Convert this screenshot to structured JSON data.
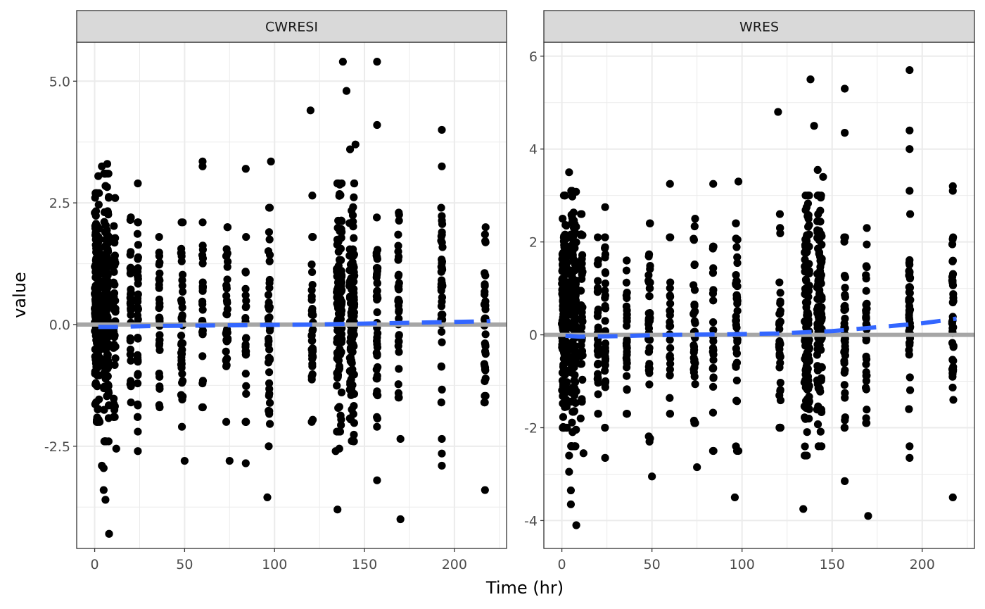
{
  "chart_data": {
    "type": "scatter",
    "xlabel": "Time (hr)",
    "ylabel": "value",
    "colors": {
      "points": "#000000",
      "smooth": "#3366ff",
      "reference": "#a6a6a6",
      "strip_fill": "#d9d9d9",
      "grid": "#ebebeb",
      "border": "#333333"
    },
    "grid": true,
    "x_ticks": [
      {
        "value": 0,
        "label": "0"
      },
      {
        "value": 50,
        "label": "50"
      },
      {
        "value": 100,
        "label": "100"
      },
      {
        "value": 150,
        "label": "150"
      },
      {
        "value": 200,
        "label": "200"
      }
    ],
    "panels": [
      {
        "strip": "CWRESI",
        "xlim": [
          -10,
          229
        ],
        "ylim": [
          -4.6,
          5.8
        ],
        "y_ticks": [
          {
            "value": -2.5,
            "label": "-2.5"
          },
          {
            "value": 0,
            "label": "0.0"
          },
          {
            "value": 2.5,
            "label": "2.5"
          },
          {
            "value": 5,
            "label": "5.0"
          }
        ],
        "reference_y": 0,
        "smooth": [
          [
            2,
            -0.05
          ],
          [
            10,
            -0.05
          ],
          [
            30,
            -0.03
          ],
          [
            60,
            -0.02
          ],
          [
            90,
            -0.01
          ],
          [
            120,
            0.0
          ],
          [
            150,
            0.02
          ],
          [
            180,
            0.04
          ],
          [
            210,
            0.06
          ],
          [
            220,
            0.07
          ]
        ],
        "outliers": [
          [
            4,
            -2.9
          ],
          [
            5,
            -2.95
          ],
          [
            5,
            -3.4
          ],
          [
            6,
            -3.6
          ],
          [
            8,
            -4.3
          ],
          [
            12,
            -2.55
          ],
          [
            24,
            -2.6
          ],
          [
            24,
            -2.2
          ],
          [
            50,
            -2.8
          ],
          [
            75,
            -2.8
          ],
          [
            84,
            -2.85
          ],
          [
            96,
            -3.55
          ],
          [
            120,
            4.4
          ],
          [
            135,
            -3.8
          ],
          [
            138,
            5.4
          ],
          [
            140,
            4.8
          ],
          [
            142,
            3.6
          ],
          [
            145,
            3.7
          ],
          [
            157,
            -3.2
          ],
          [
            157,
            5.4
          ],
          [
            157,
            4.1
          ],
          [
            170,
            -4.0
          ],
          [
            170,
            -2.35
          ],
          [
            193,
            4.0
          ],
          [
            193,
            3.25
          ],
          [
            193,
            -2.65
          ],
          [
            193,
            -2.9
          ],
          [
            193,
            -2.35
          ],
          [
            217,
            -3.4
          ],
          [
            60,
            3.35
          ],
          [
            60,
            3.25
          ],
          [
            84,
            3.2
          ],
          [
            98,
            3.35
          ],
          [
            134,
            -2.6
          ],
          [
            136,
            -2.55
          ],
          [
            4,
            3.25
          ],
          [
            7,
            3.3
          ],
          [
            2,
            3.05
          ],
          [
            121,
            2.65
          ],
          [
            24,
            2.9
          ]
        ],
        "columns": [
          {
            "x": 1.5,
            "lo": -2.0,
            "hi": 2.7,
            "n": 190,
            "jitter": 3.0
          },
          {
            "x": 6.5,
            "lo": -2.4,
            "hi": 3.1,
            "n": 150,
            "jitter": 3.0
          },
          {
            "x": 11,
            "lo": -1.9,
            "hi": 2.6,
            "n": 40,
            "jitter": 1.2
          },
          {
            "x": 20,
            "lo": -1.6,
            "hi": 2.2,
            "n": 30,
            "jitter": 0.4
          },
          {
            "x": 24,
            "lo": -1.9,
            "hi": 2.1,
            "n": 35,
            "jitter": 0.4
          },
          {
            "x": 36,
            "lo": -1.7,
            "hi": 1.8,
            "n": 30,
            "jitter": 0.4
          },
          {
            "x": 48.5,
            "lo": -2.1,
            "hi": 2.1,
            "n": 40,
            "jitter": 1.0
          },
          {
            "x": 60,
            "lo": -1.7,
            "hi": 2.1,
            "n": 25,
            "jitter": 0.4
          },
          {
            "x": 73.5,
            "lo": -2.0,
            "hi": 2.0,
            "n": 35,
            "jitter": 1.0
          },
          {
            "x": 84,
            "lo": -2.0,
            "hi": 1.8,
            "n": 25,
            "jitter": 0.4
          },
          {
            "x": 97,
            "lo": -2.5,
            "hi": 2.4,
            "n": 40,
            "jitter": 1.0
          },
          {
            "x": 121,
            "lo": -2.0,
            "hi": 1.8,
            "n": 35,
            "jitter": 0.8
          },
          {
            "x": 136,
            "lo": -2.2,
            "hi": 2.9,
            "n": 130,
            "jitter": 2.8
          },
          {
            "x": 143,
            "lo": -2.4,
            "hi": 2.9,
            "n": 130,
            "jitter": 2.8
          },
          {
            "x": 157,
            "lo": -2.1,
            "hi": 2.2,
            "n": 40,
            "jitter": 0.6
          },
          {
            "x": 169,
            "lo": -1.5,
            "hi": 2.3,
            "n": 35,
            "jitter": 0.6
          },
          {
            "x": 193,
            "lo": -1.6,
            "hi": 2.4,
            "n": 40,
            "jitter": 0.8
          },
          {
            "x": 217,
            "lo": -1.6,
            "hi": 2.0,
            "n": 35,
            "jitter": 0.8
          }
        ]
      },
      {
        "strip": "WRES",
        "xlim": [
          -10,
          229
        ],
        "ylim": [
          -4.6,
          6.3
        ],
        "y_ticks": [
          {
            "value": -4,
            "label": "-4"
          },
          {
            "value": -2,
            "label": "-2"
          },
          {
            "value": 0,
            "label": "0"
          },
          {
            "value": 2,
            "label": "2"
          },
          {
            "value": 4,
            "label": "4"
          },
          {
            "value": 6,
            "label": "6"
          }
        ],
        "reference_y": 0,
        "smooth": [
          [
            2,
            -0.02
          ],
          [
            10,
            -0.04
          ],
          [
            30,
            -0.03
          ],
          [
            60,
            0.0
          ],
          [
            90,
            0.01
          ],
          [
            120,
            0.03
          ],
          [
            150,
            0.08
          ],
          [
            180,
            0.18
          ],
          [
            200,
            0.25
          ],
          [
            210,
            0.3
          ],
          [
            219,
            0.35
          ]
        ],
        "outliers": [
          [
            4,
            -2.6
          ],
          [
            4,
            -2.95
          ],
          [
            5,
            -3.35
          ],
          [
            5,
            -3.65
          ],
          [
            8,
            -4.1
          ],
          [
            12,
            -2.55
          ],
          [
            24,
            -2.65
          ],
          [
            50,
            -3.05
          ],
          [
            75,
            -2.85
          ],
          [
            84,
            -2.5
          ],
          [
            96,
            -3.5
          ],
          [
            98,
            -2.5
          ],
          [
            120,
            4.8
          ],
          [
            134,
            -3.75
          ],
          [
            138,
            5.5
          ],
          [
            140,
            4.5
          ],
          [
            142,
            3.55
          ],
          [
            145,
            3.4
          ],
          [
            157,
            -3.15
          ],
          [
            157,
            5.3
          ],
          [
            157,
            4.35
          ],
          [
            170,
            -3.9
          ],
          [
            193,
            5.7
          ],
          [
            193,
            4.4
          ],
          [
            193,
            4.0
          ],
          [
            193,
            3.1
          ],
          [
            193,
            -2.65
          ],
          [
            193,
            -2.4
          ],
          [
            217,
            -3.5
          ],
          [
            217,
            3.2
          ],
          [
            217,
            3.1
          ],
          [
            60,
            3.25
          ],
          [
            84,
            3.25
          ],
          [
            98,
            3.3
          ],
          [
            24,
            2.75
          ],
          [
            4,
            3.5
          ],
          [
            121,
            2.6
          ]
        ],
        "columns": [
          {
            "x": 1.5,
            "lo": -2.0,
            "hi": 3.0,
            "n": 190,
            "jitter": 3.0
          },
          {
            "x": 6.5,
            "lo": -2.4,
            "hi": 3.1,
            "n": 150,
            "jitter": 3.0
          },
          {
            "x": 11,
            "lo": -1.8,
            "hi": 2.6,
            "n": 40,
            "jitter": 1.2
          },
          {
            "x": 20,
            "lo": -1.7,
            "hi": 2.1,
            "n": 30,
            "jitter": 0.4
          },
          {
            "x": 24,
            "lo": -2.0,
            "hi": 2.1,
            "n": 35,
            "jitter": 0.4
          },
          {
            "x": 36,
            "lo": -1.7,
            "hi": 1.6,
            "n": 30,
            "jitter": 0.4
          },
          {
            "x": 48.5,
            "lo": -2.3,
            "hi": 2.4,
            "n": 40,
            "jitter": 1.0
          },
          {
            "x": 60,
            "lo": -1.7,
            "hi": 2.1,
            "n": 25,
            "jitter": 0.4
          },
          {
            "x": 73.5,
            "lo": -1.9,
            "hi": 2.5,
            "n": 35,
            "jitter": 1.0
          },
          {
            "x": 84,
            "lo": -2.5,
            "hi": 1.9,
            "n": 25,
            "jitter": 0.4
          },
          {
            "x": 97,
            "lo": -2.5,
            "hi": 2.4,
            "n": 40,
            "jitter": 1.0
          },
          {
            "x": 121,
            "lo": -2.0,
            "hi": 2.3,
            "n": 35,
            "jitter": 0.8
          },
          {
            "x": 136,
            "lo": -2.6,
            "hi": 3.0,
            "n": 130,
            "jitter": 2.8
          },
          {
            "x": 143,
            "lo": -2.4,
            "hi": 3.0,
            "n": 130,
            "jitter": 2.8
          },
          {
            "x": 157,
            "lo": -2.0,
            "hi": 2.1,
            "n": 40,
            "jitter": 0.6
          },
          {
            "x": 169,
            "lo": -1.9,
            "hi": 2.3,
            "n": 35,
            "jitter": 0.6
          },
          {
            "x": 193,
            "lo": -1.6,
            "hi": 2.6,
            "n": 40,
            "jitter": 0.8
          },
          {
            "x": 217,
            "lo": -1.4,
            "hi": 2.1,
            "n": 35,
            "jitter": 0.8
          }
        ]
      }
    ]
  }
}
